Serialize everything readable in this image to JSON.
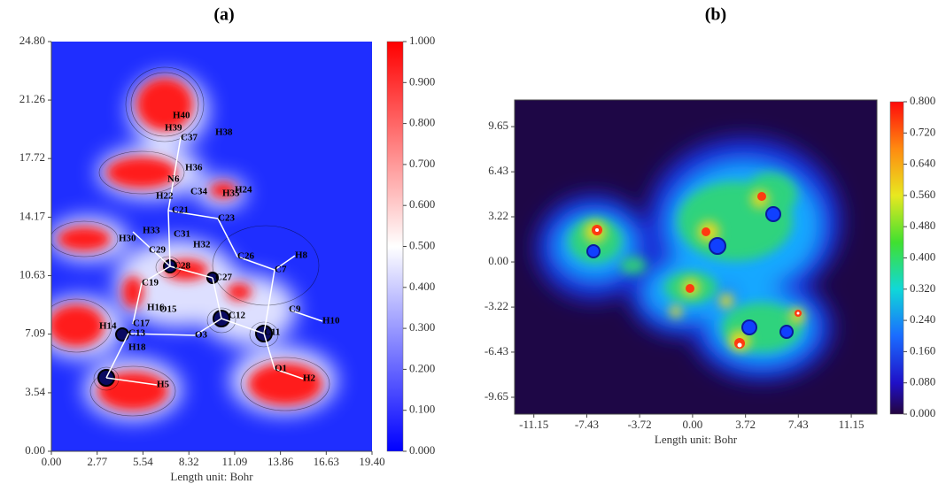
{
  "chart_data": [
    {
      "type": "contour",
      "title": "(a)",
      "x_label": "Length unit: Bohr",
      "xlim": [
        0,
        19.4
      ],
      "ylim": [
        0,
        24.8
      ],
      "xticks": [
        {
          "value": 0,
          "label": "0.00"
        },
        2.77,
        5.54,
        8.32,
        11.09,
        13.86,
        16.63,
        {
          "value": 19.4,
          "label": "19.40"
        }
      ],
      "yticks": [
        {
          "value": 0,
          "label": "0.00"
        },
        3.54,
        7.09,
        10.63,
        14.17,
        17.72,
        21.26,
        {
          "value": 24.8,
          "label": "24.80"
        }
      ],
      "colorbar": {
        "lim": [
          0,
          1
        ],
        "ticks": [
          {
            "value": 0,
            "label": "0.000"
          },
          {
            "value": 0.1,
            "label": "0.100"
          },
          {
            "value": 0.2,
            "label": "0.200"
          },
          {
            "value": 0.3,
            "label": "0.300"
          },
          {
            "value": 0.4,
            "label": "0.400"
          },
          {
            "value": 0.5,
            "label": "0.500"
          },
          {
            "value": 0.6,
            "label": "0.600"
          },
          {
            "value": 0.7,
            "label": "0.700"
          },
          {
            "value": 0.8,
            "label": "0.800"
          },
          {
            "value": 0.9,
            "label": "0.900"
          },
          {
            "value": 1,
            "label": "1.000"
          }
        ]
      },
      "atoms": [
        "H40",
        "H39",
        "C37",
        "H38",
        "H36",
        "N6",
        "C34",
        "H22",
        "H35",
        "H24",
        "C21",
        "C23",
        "H33",
        "C31",
        "H30",
        "H32",
        "C29",
        "C26",
        "H8",
        "C28",
        "C7",
        "C27",
        "C19",
        "H16",
        "O15",
        "C12",
        "C9",
        "H10",
        "H14",
        "C17",
        "C13",
        "O3",
        "C11",
        "H18",
        "O1",
        "H2",
        "H5"
      ]
    },
    {
      "type": "contour",
      "title": "(b)",
      "x_label": "Length unit: Bohr",
      "xlim": [
        -12.5,
        12.95
      ],
      "ylim": [
        -10.85,
        11.55
      ],
      "xticks": [
        -11.15,
        -7.43,
        -3.72,
        {
          "value": 0,
          "label": "0.00"
        },
        3.72,
        7.43,
        11.15
      ],
      "yticks": [
        -9.65,
        -6.43,
        -3.22,
        {
          "value": 0,
          "label": "0.00"
        },
        3.22,
        6.43,
        9.65
      ],
      "colorbar": {
        "lim": [
          0,
          0.8
        ],
        "ticks": [
          {
            "value": 0,
            "label": "0.000"
          },
          {
            "value": 0.08,
            "label": "0.080"
          },
          {
            "value": 0.16,
            "label": "0.160"
          },
          {
            "value": 0.24,
            "label": "0.240"
          },
          {
            "value": 0.32,
            "label": "0.320"
          },
          {
            "value": 0.4,
            "label": "0.400"
          },
          {
            "value": 0.48,
            "label": "0.480"
          },
          {
            "value": 0.56,
            "label": "0.560"
          },
          {
            "value": 0.64,
            "label": "0.640"
          },
          {
            "value": 0.72,
            "label": "0.720"
          },
          {
            "value": 0.8,
            "label": "0.800"
          }
        ]
      }
    }
  ]
}
